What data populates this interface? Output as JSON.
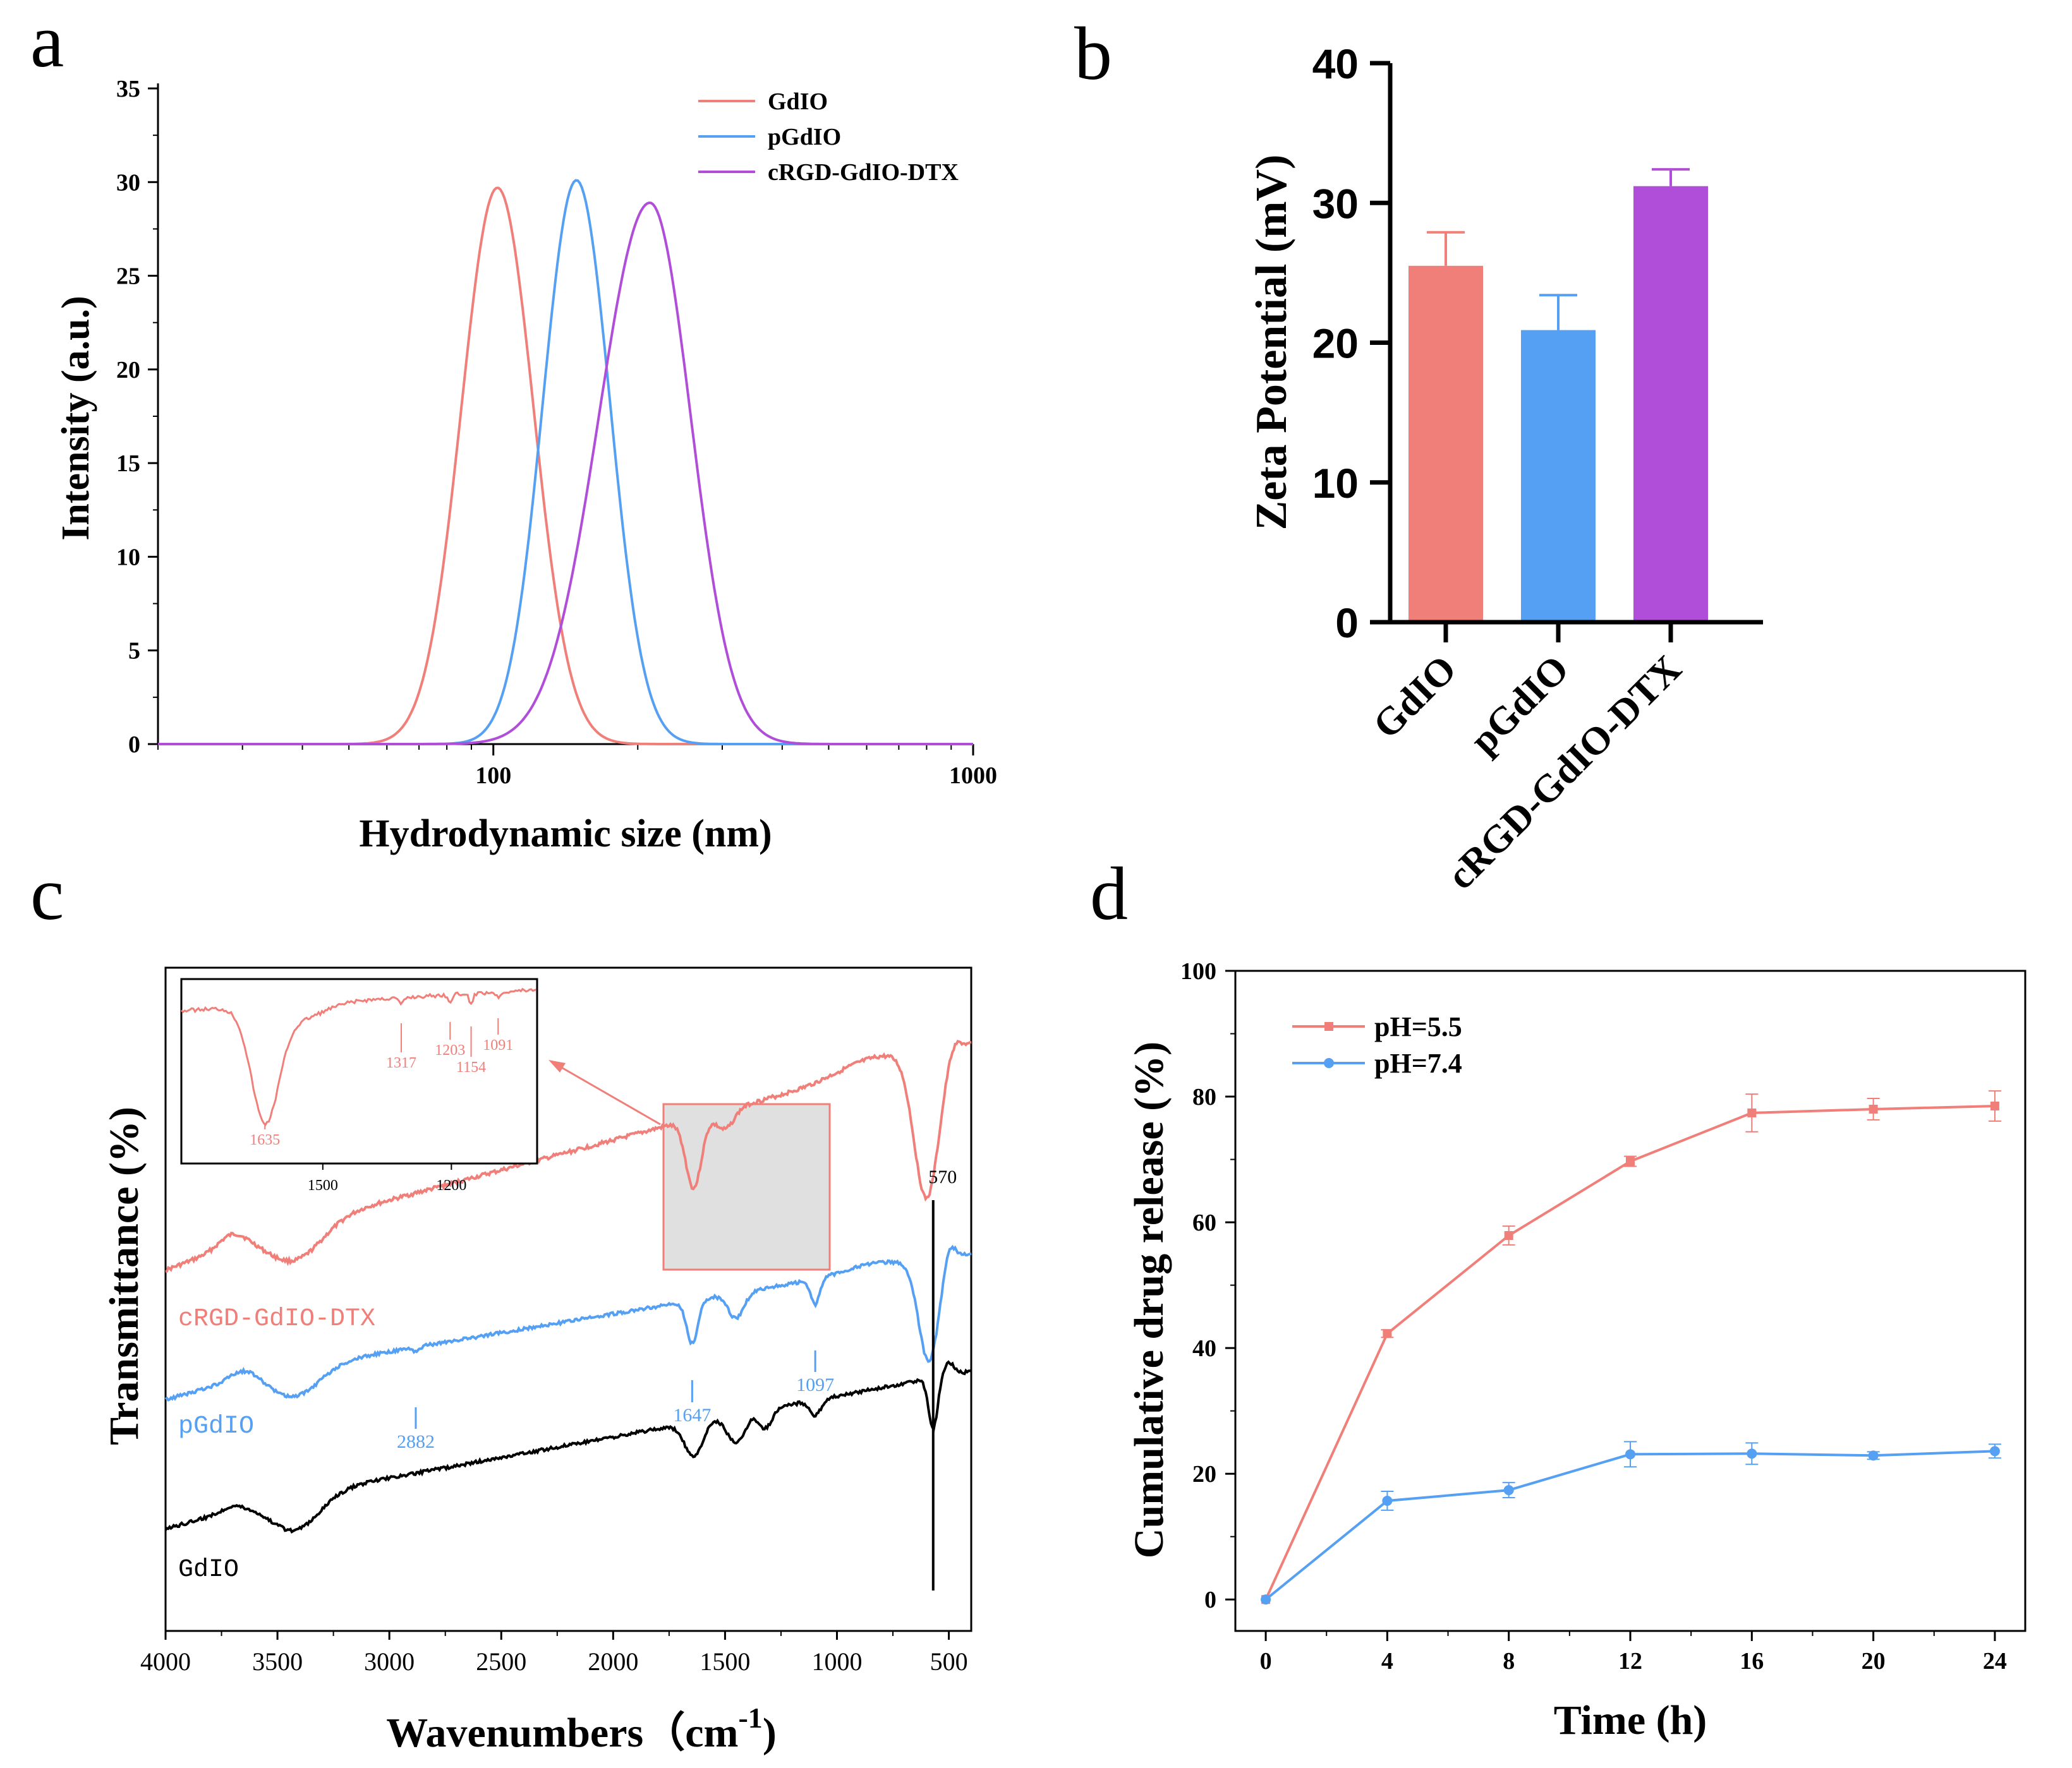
{
  "panel_labels": {
    "a": "a",
    "b": "b",
    "c": "c",
    "d": "d"
  },
  "colors": {
    "gdio": "#F07E79",
    "pgdio": "#55A0F2",
    "crgd": "#B04ED9",
    "axis": "#000000",
    "box": "#E0E0E0"
  },
  "chart_data": [
    {
      "id": "a",
      "type": "line",
      "title": "",
      "xlabel": "Hydrodynamic size (nm)",
      "ylabel": "Intensity (a.u.)",
      "xscale": "log",
      "xlim": [
        20,
        1000
      ],
      "ylim": [
        0,
        35
      ],
      "xticks": [
        "100",
        "1000"
      ],
      "yticks": [
        "0",
        "5",
        "10",
        "15",
        "20",
        "25",
        "30",
        "35"
      ],
      "legend": "top-right",
      "series": [
        {
          "name": "GdIO",
          "peak_x": 102,
          "peak_y": 29.7,
          "width": 0.075
        },
        {
          "name": "pGdIO",
          "peak_x": 149,
          "peak_y": 30.1,
          "width": 0.07
        },
        {
          "name": "cRGD-GdIO-DTX",
          "peak_x": 212,
          "peak_y": 28.9,
          "width": 0.085
        }
      ]
    },
    {
      "id": "b",
      "type": "bar",
      "title": "",
      "xlabel": "",
      "ylabel": "Zeta Potential (mV)",
      "ylim": [
        0,
        40
      ],
      "yticks": [
        "0",
        "10",
        "20",
        "30",
        "40"
      ],
      "categories": [
        "GdIO",
        "pGdIO",
        "cRGD-GdIO-DTX"
      ],
      "values": [
        25.5,
        20.9,
        31.2
      ],
      "errors": [
        2.4,
        2.5,
        1.2
      ]
    },
    {
      "id": "c",
      "type": "line",
      "title": "",
      "xlabel_main": "Wavenumbers（cm",
      "xlabel_sup": "-1",
      "xlabel_close": ")",
      "ylabel": "Transmittance (%)",
      "xlim": [
        4000,
        400
      ],
      "xticks": [
        "4000",
        "3500",
        "3000",
        "2500",
        "2000",
        "1500",
        "1000",
        "500"
      ],
      "series": [
        {
          "name": "cRGD-GdIO-DTX"
        },
        {
          "name": "pGdIO"
        },
        {
          "name": "GdIO"
        }
      ],
      "annotations": [
        "570",
        "2882",
        "1647",
        "1097"
      ],
      "inset": {
        "xticks": [
          "1500",
          "1200"
        ],
        "annotations": [
          "1635",
          "1317",
          "1203",
          "1154",
          "1091"
        ]
      }
    },
    {
      "id": "d",
      "type": "line",
      "title": "",
      "xlabel": "Time (h)",
      "ylabel": "Cumulative drug release (%)",
      "xlim": [
        -1,
        25
      ],
      "ylim": [
        -5,
        100
      ],
      "xticks": [
        "0",
        "4",
        "8",
        "12",
        "16",
        "20",
        "24"
      ],
      "yticks": [
        "0",
        "20",
        "40",
        "60",
        "80",
        "100"
      ],
      "legend": "top-left",
      "x": [
        0,
        4,
        8,
        12,
        16,
        20,
        24
      ],
      "series": [
        {
          "name": "pH=5.5",
          "values": [
            0,
            42.3,
            57.9,
            69.7,
            77.4,
            78.0,
            78.5
          ],
          "errors": [
            0,
            0.6,
            1.5,
            0.8,
            3.0,
            1.7,
            2.4
          ]
        },
        {
          "name": "pH=7.4",
          "values": [
            0,
            15.7,
            17.4,
            23.1,
            23.2,
            22.9,
            23.6
          ],
          "errors": [
            0,
            1.5,
            1.2,
            2.0,
            1.7,
            0.6,
            1.1
          ]
        }
      ]
    }
  ]
}
